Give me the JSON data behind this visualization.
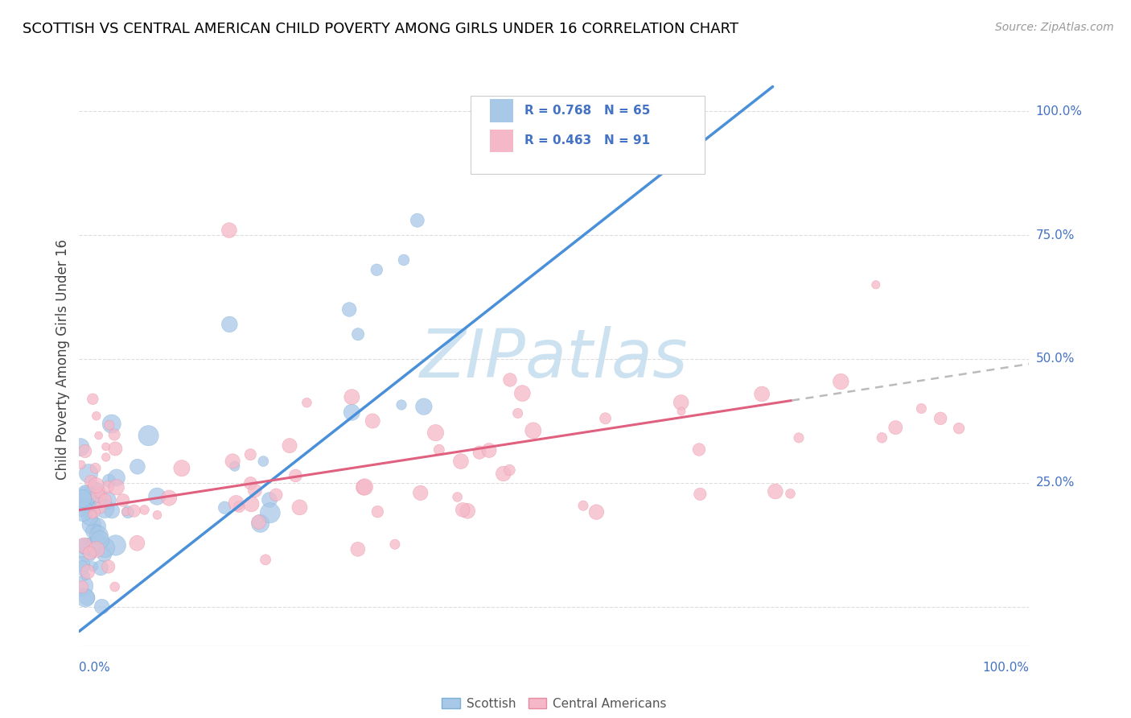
{
  "title": "SCOTTISH VS CENTRAL AMERICAN CHILD POVERTY AMONG GIRLS UNDER 16 CORRELATION CHART",
  "source": "Source: ZipAtlas.com",
  "ylabel": "Child Poverty Among Girls Under 16",
  "scottish_R": 0.768,
  "scottish_N": 65,
  "central_R": 0.463,
  "central_N": 91,
  "scottish_color": "#a8c8e8",
  "scottish_edge_color": "#7bafd4",
  "central_color": "#f5b8c8",
  "central_edge_color": "#e88aa0",
  "scottish_line_color": "#4a90d9",
  "central_line_color": "#e06080",
  "watermark_color": "#c8dff0",
  "background_color": "#ffffff",
  "grid_color": "#dddddd",
  "axis_color": "#4472c4",
  "title_color": "#000000",
  "source_color": "#999999",
  "legend_text_color": "#4472c4",
  "bottom_legend_text_color": "#555555"
}
